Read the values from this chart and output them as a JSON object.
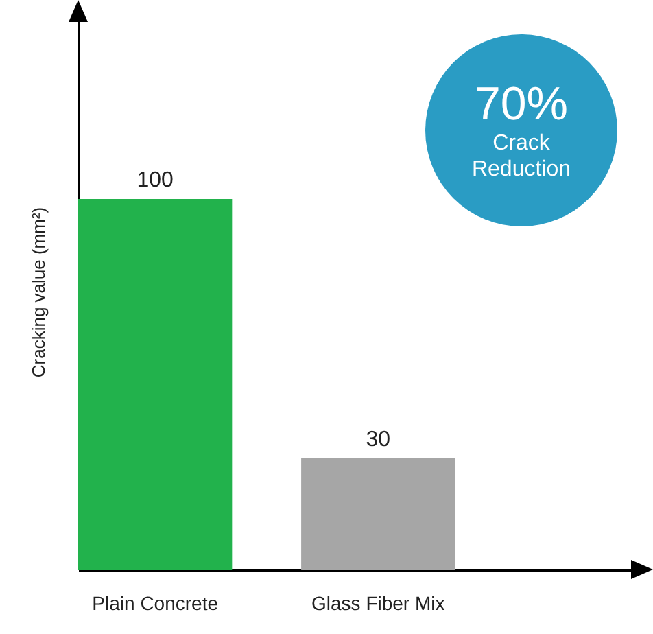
{
  "chart_data": {
    "type": "bar",
    "ylabel": "Cracking value (mm²)",
    "categories": [
      "Plain Concrete",
      "Glass Fiber Mix"
    ],
    "values": [
      100,
      30
    ],
    "colors": [
      "#22b24c",
      "#a6a6a6"
    ],
    "data_labels": true,
    "annotations": [
      "70%",
      "Crack Reduction"
    ]
  }
}
